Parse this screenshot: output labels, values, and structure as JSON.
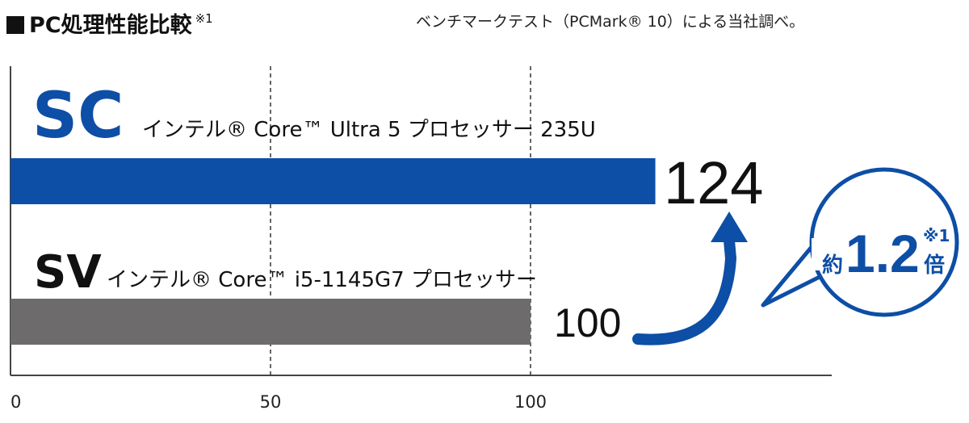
{
  "header": {
    "title": "PC処理性能比較",
    "title_note": "※1",
    "source": "ベンチマークテスト（PCMark® 10）による当社調べ。"
  },
  "chart_data": {
    "type": "bar",
    "orientation": "horizontal",
    "categories": [
      "SC",
      "SV"
    ],
    "category_descriptions": [
      "インテル® Core™ Ultra 5 プロセッサー 235U",
      "インテル® Core™ i5-1145G7 プロセッサー"
    ],
    "values": [
      124,
      100
    ],
    "value_labels": [
      "124",
      "100"
    ],
    "bar_colors": [
      "#0d4ea6",
      "#6e6b6c"
    ],
    "label_colors": [
      "#0d4ea6",
      "#111111"
    ],
    "xlim": [
      0,
      100
    ],
    "xticks": [
      0,
      50,
      100
    ],
    "tick_labels": [
      "0",
      "50",
      "100"
    ],
    "grid": "vertical dashed at 50 and 100",
    "callout": {
      "prefix": "約",
      "value": "1.2",
      "suffix": "倍",
      "note": "※1",
      "color": "#0d4ea6"
    }
  }
}
